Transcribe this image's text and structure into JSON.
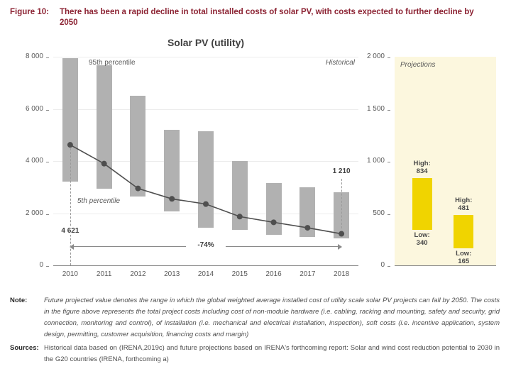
{
  "figure": {
    "label": "Figure 10:",
    "title": "There has been a rapid decline in total installed costs of solar PV, with costs expected to further decline by 2050"
  },
  "chart_data": [
    {
      "type": "bar",
      "name": "historical-solar-pv-costs",
      "title": "Solar PV (utility)",
      "categories": [
        "2010",
        "2011",
        "2012",
        "2013",
        "2014",
        "2015",
        "2016",
        "2017",
        "2018"
      ],
      "bar_ranges_5th_95th_percentile": [
        [
          3200,
          7950
        ],
        [
          2930,
          7680
        ],
        [
          2650,
          6500
        ],
        [
          2060,
          5200
        ],
        [
          1440,
          5150
        ],
        [
          1360,
          4000
        ],
        [
          1170,
          3150
        ],
        [
          1090,
          2980
        ],
        [
          1030,
          2790
        ]
      ],
      "line_values_weighted_average": [
        4621,
        3900,
        2950,
        2550,
        2350,
        1870,
        1650,
        1440,
        1210
      ],
      "ylim": [
        0,
        8000
      ],
      "yticks": [
        0,
        2000,
        4000,
        6000,
        8000
      ],
      "ytick_labels": [
        "0",
        "2 000",
        "4 000",
        "6 000",
        "8 000"
      ],
      "grid": "horizontal",
      "annotations": {
        "p95": "95th percentile",
        "p5": "5th percentile",
        "first_value": "4 621",
        "last_value": "1 210",
        "header": "Historical",
        "change": "-74%"
      }
    },
    {
      "type": "bar",
      "name": "projections-2050",
      "header": "Projections",
      "ylim": [
        0,
        2000
      ],
      "yticks": [
        0,
        500,
        1000,
        1500,
        2000
      ],
      "ytick_labels": [
        "0",
        "500",
        "1 000",
        "1 500",
        "2 000"
      ],
      "bars": [
        {
          "high": 834,
          "low": 340,
          "high_label": "High:",
          "high_value": "834",
          "low_label": "Low:",
          "low_value": "340"
        },
        {
          "high": 481,
          "low": 165,
          "high_label": "High:",
          "high_value": "481",
          "low_label": "Low:",
          "low_value": "165"
        }
      ],
      "bar_center_fractions": [
        0.27,
        0.68
      ]
    }
  ],
  "notes": {
    "note_label": "Note:",
    "note_text": "Future projected value denotes the range in which the global weighted average installed cost of utility scale solar PV projects can fall by 2050. The costs in the figure above represents the total project costs including cost of non-module hardware (i.e. cabling, racking and mounting, safety and security, grid connection, monitoring and control), of installation (i.e. mechanical and electrical installation, inspection), soft costs (i.e. incentive application, system design, permitting, customer acquisition, financing costs and margin)",
    "sources_label": "Sources:",
    "sources_text": "Historical data based on (IRENA,2019c) and future projections based on IRENA's forthcoming report: Solar and wind cost reduction potential to 2030 in the G20 countries (IRENA, forthcoming a)"
  },
  "colors": {
    "title_red": "#8c2333",
    "bar_gray": "#b1b1b1",
    "line_gray": "#4f4f4f",
    "projection_bg": "#fcf7de",
    "projection_yellow": "#f0d400",
    "text_gray": "#595959"
  }
}
